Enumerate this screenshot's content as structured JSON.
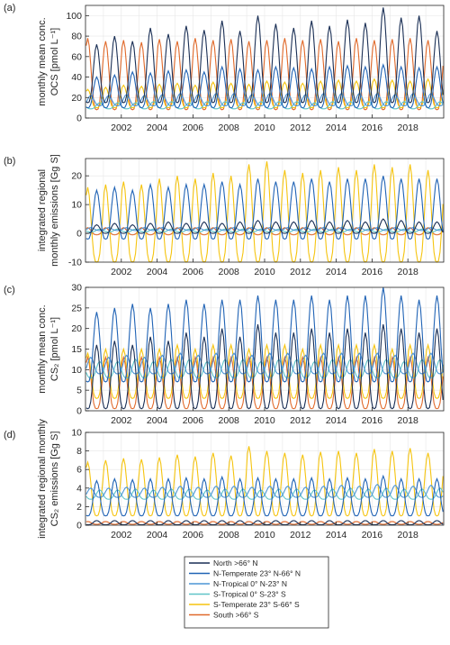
{
  "colors": {
    "north": "#1a2f55",
    "n_temperate": "#2063b5",
    "n_tropical": "#4c96d6",
    "s_tropical": "#5fc4c8",
    "s_temperate": "#f5c40f",
    "south": "#e0692a"
  },
  "legend": [
    {
      "key": "north",
      "label": "North >66° N"
    },
    {
      "key": "n_temperate",
      "label": "N-Temperate 23° N-66° N"
    },
    {
      "key": "n_tropical",
      "label": "N-Tropical 0° N-23° N"
    },
    {
      "key": "s_tropical",
      "label": "S-Tropical 0° S-23° S"
    },
    {
      "key": "s_temperate",
      "label": "S-Temperate 23° S-66° S"
    },
    {
      "key": "south",
      "label": "South >66° S"
    }
  ],
  "chart_data": [
    {
      "panel": "(a)",
      "type": "line",
      "ylabel_lines": [
        "monthly mean conc.",
        "OCS [pmol L⁻¹]"
      ],
      "xlim": [
        2000.0,
        2020.0
      ],
      "ylim": [
        0,
        110
      ],
      "yticks": [
        0,
        20,
        40,
        60,
        80,
        100
      ],
      "xticks": [
        2002,
        2004,
        2006,
        2008,
        2010,
        2012,
        2014,
        2016,
        2018
      ],
      "grid": true,
      "x_start": 2000.0,
      "x_step_months": 1,
      "n_months": 240,
      "series_model": [
        {
          "key": "north",
          "amp_min": 15,
          "amp_max": [
            72,
            80,
            75,
            88,
            82,
            90,
            86,
            95,
            85,
            100,
            92,
            88,
            95,
            90,
            96,
            93,
            108,
            98,
            100,
            85
          ],
          "peak_month": 7
        },
        {
          "key": "n_temperate",
          "amp_min": 10,
          "amp_max": [
            40,
            42,
            45,
            44,
            46,
            47,
            45,
            50,
            48,
            47,
            50,
            49,
            48,
            50,
            51,
            50,
            52,
            50,
            49,
            50
          ],
          "peak_month": 7
        },
        {
          "key": "n_tropical",
          "amp_min": 12,
          "amp_max": [
            22,
            22,
            23,
            22,
            23,
            24,
            23,
            24,
            24,
            23,
            24,
            24,
            23,
            24,
            24,
            24,
            24,
            23,
            24,
            24
          ],
          "peak_month": 3
        },
        {
          "key": "s_tropical",
          "amp_min": 9,
          "amp_max": [
            15,
            15,
            15,
            16,
            16,
            15,
            16,
            16,
            15,
            16,
            16,
            16,
            15,
            16,
            16,
            16,
            16,
            16,
            16,
            16
          ],
          "peak_month": 9
        },
        {
          "key": "s_temperate",
          "amp_min": 10,
          "amp_max": [
            28,
            30,
            32,
            31,
            33,
            34,
            32,
            35,
            34,
            33,
            36,
            35,
            34,
            36,
            37,
            36,
            38,
            37,
            36,
            38
          ],
          "peak_month": 1
        },
        {
          "key": "south",
          "amp_min": 8,
          "amp_max": [
            78,
            75,
            76,
            74,
            77,
            75,
            78,
            76,
            77,
            75,
            76,
            78,
            76,
            77,
            75,
            78,
            76,
            77,
            78,
            76
          ],
          "peak_month": 1
        }
      ]
    },
    {
      "panel": "(b)",
      "type": "line",
      "ylabel_lines": [
        "integrated regional",
        "monthly emissions [Gg S]"
      ],
      "xlim": [
        2000.0,
        2020.0
      ],
      "ylim": [
        -10,
        26
      ],
      "yticks": [
        -10,
        0,
        10,
        20
      ],
      "xticks": [
        2002,
        2004,
        2006,
        2008,
        2010,
        2012,
        2014,
        2016,
        2018
      ],
      "grid": true,
      "x_start": 2000.0,
      "x_step_months": 1,
      "n_months": 240,
      "series_model": [
        {
          "key": "north",
          "amp_min": 0,
          "amp_max": [
            3,
            3.5,
            3,
            3.5,
            4,
            3.5,
            4,
            3.5,
            4,
            4.5,
            4,
            4,
            4.5,
            4,
            4.5,
            4,
            5,
            4.5,
            4,
            4
          ],
          "peak_month": 7
        },
        {
          "key": "n_temperate",
          "amp_min": -2,
          "amp_max": [
            15,
            16,
            15,
            17,
            16,
            17,
            17,
            18,
            17,
            19,
            18,
            18,
            19,
            18,
            19,
            19,
            20,
            19,
            19,
            19
          ],
          "peak_month": 7
        },
        {
          "key": "n_tropical",
          "amp_min": 1,
          "amp_max": [
            2,
            2,
            2,
            2,
            2,
            2,
            2,
            2,
            2,
            2,
            2,
            2,
            2,
            2,
            2,
            2,
            2,
            2,
            2,
            2
          ],
          "peak_month": 3
        },
        {
          "key": "s_tropical",
          "amp_min": 0.5,
          "amp_max": [
            1.5,
            1.5,
            1.5,
            1.5,
            1.5,
            1.5,
            1.5,
            1.5,
            1.5,
            1.5,
            1.5,
            1.5,
            1.5,
            1.5,
            1.5,
            1.5,
            1.5,
            1.5,
            1.5,
            1.5
          ],
          "peak_month": 9
        },
        {
          "key": "s_temperate",
          "amp_min": -10,
          "amp_max": [
            16,
            17,
            18,
            17,
            19,
            20,
            19,
            21,
            20,
            24,
            25,
            22,
            21,
            22,
            23,
            22,
            24,
            23,
            24,
            22
          ],
          "peak_month": 1
        },
        {
          "key": "south",
          "amp_min": -0.5,
          "amp_max": [
            2,
            2,
            2,
            2,
            2,
            2,
            2,
            2,
            2,
            2,
            2,
            2,
            2,
            2,
            2,
            2,
            2,
            2,
            2,
            2
          ],
          "peak_month": 1
        }
      ]
    },
    {
      "panel": "(c)",
      "type": "line",
      "ylabel_lines": [
        "monthly mean conc.",
        "CS₂ [pmol L⁻¹]"
      ],
      "xlim": [
        2000.0,
        2020.0
      ],
      "ylim": [
        0,
        30
      ],
      "yticks": [
        0,
        5,
        10,
        15,
        20,
        25,
        30
      ],
      "xticks": [
        2002,
        2004,
        2006,
        2008,
        2010,
        2012,
        2014,
        2016,
        2018
      ],
      "grid": true,
      "x_start": 2000.0,
      "x_step_months": 1,
      "n_months": 240,
      "series_model": [
        {
          "key": "north",
          "amp_min": 0.5,
          "amp_max": [
            16,
            17,
            16,
            18,
            17,
            19,
            18,
            20,
            18,
            21,
            19,
            19,
            20,
            19,
            20,
            19,
            21,
            20,
            19,
            20
          ],
          "peak_month": 7
        },
        {
          "key": "n_temperate",
          "amp_min": 7,
          "amp_max": [
            24,
            25,
            26,
            25,
            26,
            27,
            26,
            27,
            27,
            28,
            27,
            27,
            28,
            27,
            28,
            28,
            30,
            28,
            27,
            28
          ],
          "peak_month": 7
        },
        {
          "key": "n_tropical",
          "amp_min": 9,
          "amp_max": [
            13,
            13,
            13.5,
            13,
            13.5,
            14,
            13.5,
            14,
            14,
            13.5,
            14,
            14,
            13.5,
            14,
            14,
            14,
            14,
            13.5,
            14,
            14
          ],
          "peak_month": 3
        },
        {
          "key": "s_tropical",
          "amp_min": 8,
          "amp_max": [
            12,
            12,
            12.5,
            12,
            12.5,
            12.5,
            12,
            12.5,
            12.5,
            12,
            12.5,
            12.5,
            12,
            12.5,
            12.5,
            12.5,
            12.5,
            12,
            12.5,
            12.5
          ],
          "peak_month": 9
        },
        {
          "key": "s_temperate",
          "amp_min": 3,
          "amp_max": [
            14,
            15,
            15,
            15,
            15,
            16,
            15,
            16,
            16,
            15,
            16,
            16,
            15,
            16,
            16,
            16,
            16,
            15,
            16,
            16
          ],
          "peak_month": 1
        },
        {
          "key": "south",
          "amp_min": 0.5,
          "amp_max": [
            13,
            13,
            13,
            13,
            13,
            13,
            13,
            13,
            13,
            13,
            13,
            13,
            13,
            13,
            13,
            13,
            13,
            13,
            13,
            13
          ],
          "peak_month": 1
        }
      ]
    },
    {
      "panel": "(d)",
      "type": "line",
      "ylabel_lines": [
        "integrated regional monthly",
        "CS₂ emissions [Gg S]"
      ],
      "xlim": [
        2000.0,
        2020.0
      ],
      "ylim": [
        0,
        10
      ],
      "yticks": [
        0,
        2,
        4,
        6,
        8,
        10
      ],
      "xticks": [
        2002,
        2004,
        2006,
        2008,
        2010,
        2012,
        2014,
        2016,
        2018
      ],
      "grid": true,
      "x_start": 2000.0,
      "x_step_months": 1,
      "n_months": 240,
      "series_model": [
        {
          "key": "north",
          "amp_min": 0.05,
          "amp_max": [
            0.5,
            0.5,
            0.5,
            0.5,
            0.5,
            0.5,
            0.5,
            0.5,
            0.5,
            0.5,
            0.5,
            0.5,
            0.5,
            0.5,
            0.5,
            0.5,
            0.5,
            0.5,
            0.5,
            0.5
          ],
          "peak_month": 7
        },
        {
          "key": "n_temperate",
          "amp_min": 1,
          "amp_max": [
            4.8,
            5,
            4.9,
            5,
            5,
            5.1,
            5,
            5.2,
            5,
            5.1,
            5,
            5,
            5.1,
            5,
            5.1,
            5,
            5.3,
            5,
            5,
            5
          ],
          "peak_month": 7
        },
        {
          "key": "n_tropical",
          "amp_min": 3,
          "amp_max": [
            4,
            4,
            4.1,
            4,
            4.1,
            4.2,
            4.1,
            4.2,
            4.2,
            4.1,
            4.2,
            4.2,
            4.1,
            4.2,
            4.3,
            4.2,
            4.4,
            4.3,
            4.2,
            4.3
          ],
          "peak_month": 3
        },
        {
          "key": "s_tropical",
          "amp_min": 2.8,
          "amp_max": [
            3.8,
            3.8,
            3.9,
            3.8,
            3.9,
            3.9,
            3.8,
            3.9,
            3.9,
            3.8,
            3.9,
            3.9,
            3.8,
            3.9,
            4,
            3.9,
            4,
            3.9,
            3.9,
            4
          ],
          "peak_month": 9
        },
        {
          "key": "s_temperate",
          "amp_min": 1,
          "amp_max": [
            6.8,
            7,
            7.2,
            7.1,
            7.3,
            7.6,
            7.4,
            7.8,
            7.5,
            8.5,
            8,
            7.8,
            7.6,
            7.9,
            8,
            7.8,
            8.2,
            8,
            8.3,
            7.8
          ],
          "peak_month": 1
        },
        {
          "key": "south",
          "amp_min": 0.1,
          "amp_max": [
            0.4,
            0.4,
            0.4,
            0.4,
            0.4,
            0.4,
            0.4,
            0.4,
            0.4,
            0.4,
            0.4,
            0.4,
            0.4,
            0.4,
            0.4,
            0.4,
            0.4,
            0.4,
            0.4,
            0.4
          ],
          "peak_month": 1
        }
      ]
    }
  ]
}
